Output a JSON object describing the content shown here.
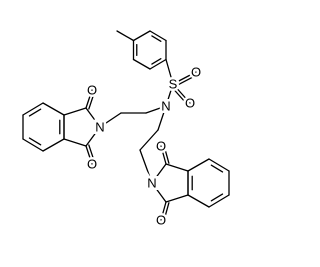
{
  "atom_labels": [
    "S",
    "O",
    "O",
    "N",
    "N",
    "O",
    "O",
    "N",
    "O",
    "O"
  ]
}
